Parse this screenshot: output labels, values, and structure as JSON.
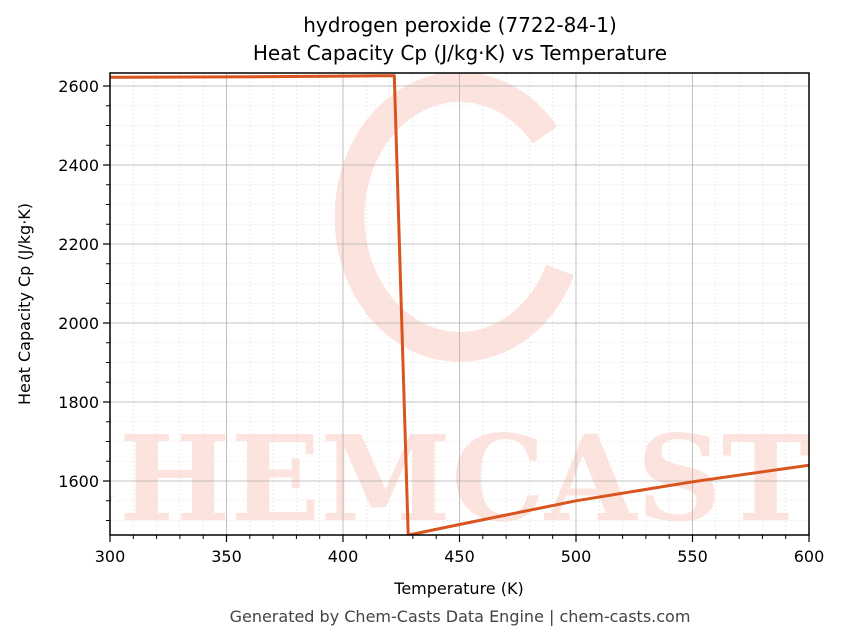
{
  "title_line1": "hydrogen peroxide (7722-84-1)",
  "title_line2": "Heat Capacity Cp (J/kg·K) vs Temperature",
  "footer": "Generated by Chem-Casts Data Engine | chem-casts.com",
  "watermark": "CHEMCASTS",
  "colors": {
    "line": "#d9541e",
    "watermark": "#fde0da",
    "grid_major": "#b0b0b0",
    "grid_minor": "#e0e0e0"
  },
  "chart_data": {
    "type": "line",
    "title": "hydrogen peroxide (7722-84-1)\nHeat Capacity Cp (J/kg·K) vs Temperature",
    "xlabel": "Temperature (K)",
    "ylabel": "Heat Capacity Cp (J/kg·K)",
    "xlim": [
      300,
      600
    ],
    "ylim": [
      1460,
      2630
    ],
    "xticks": [
      300,
      350,
      400,
      450,
      500,
      550,
      600
    ],
    "yticks": [
      1600,
      1800,
      2000,
      2200,
      2400,
      2600
    ],
    "grid": true,
    "legend": "none",
    "series": [
      {
        "name": "Cp",
        "x": [
          300,
          350,
          400,
          422,
          428,
          450,
          500,
          550,
          600
        ],
        "y": [
          2622,
          2623,
          2625,
          2626,
          1463,
          1490,
          1550,
          1598,
          1640
        ]
      }
    ]
  },
  "x_tick_labels": [
    "300",
    "350",
    "400",
    "450",
    "500",
    "550",
    "600"
  ],
  "y_tick_labels": [
    "1600",
    "1800",
    "2000",
    "2200",
    "2400",
    "2600"
  ]
}
